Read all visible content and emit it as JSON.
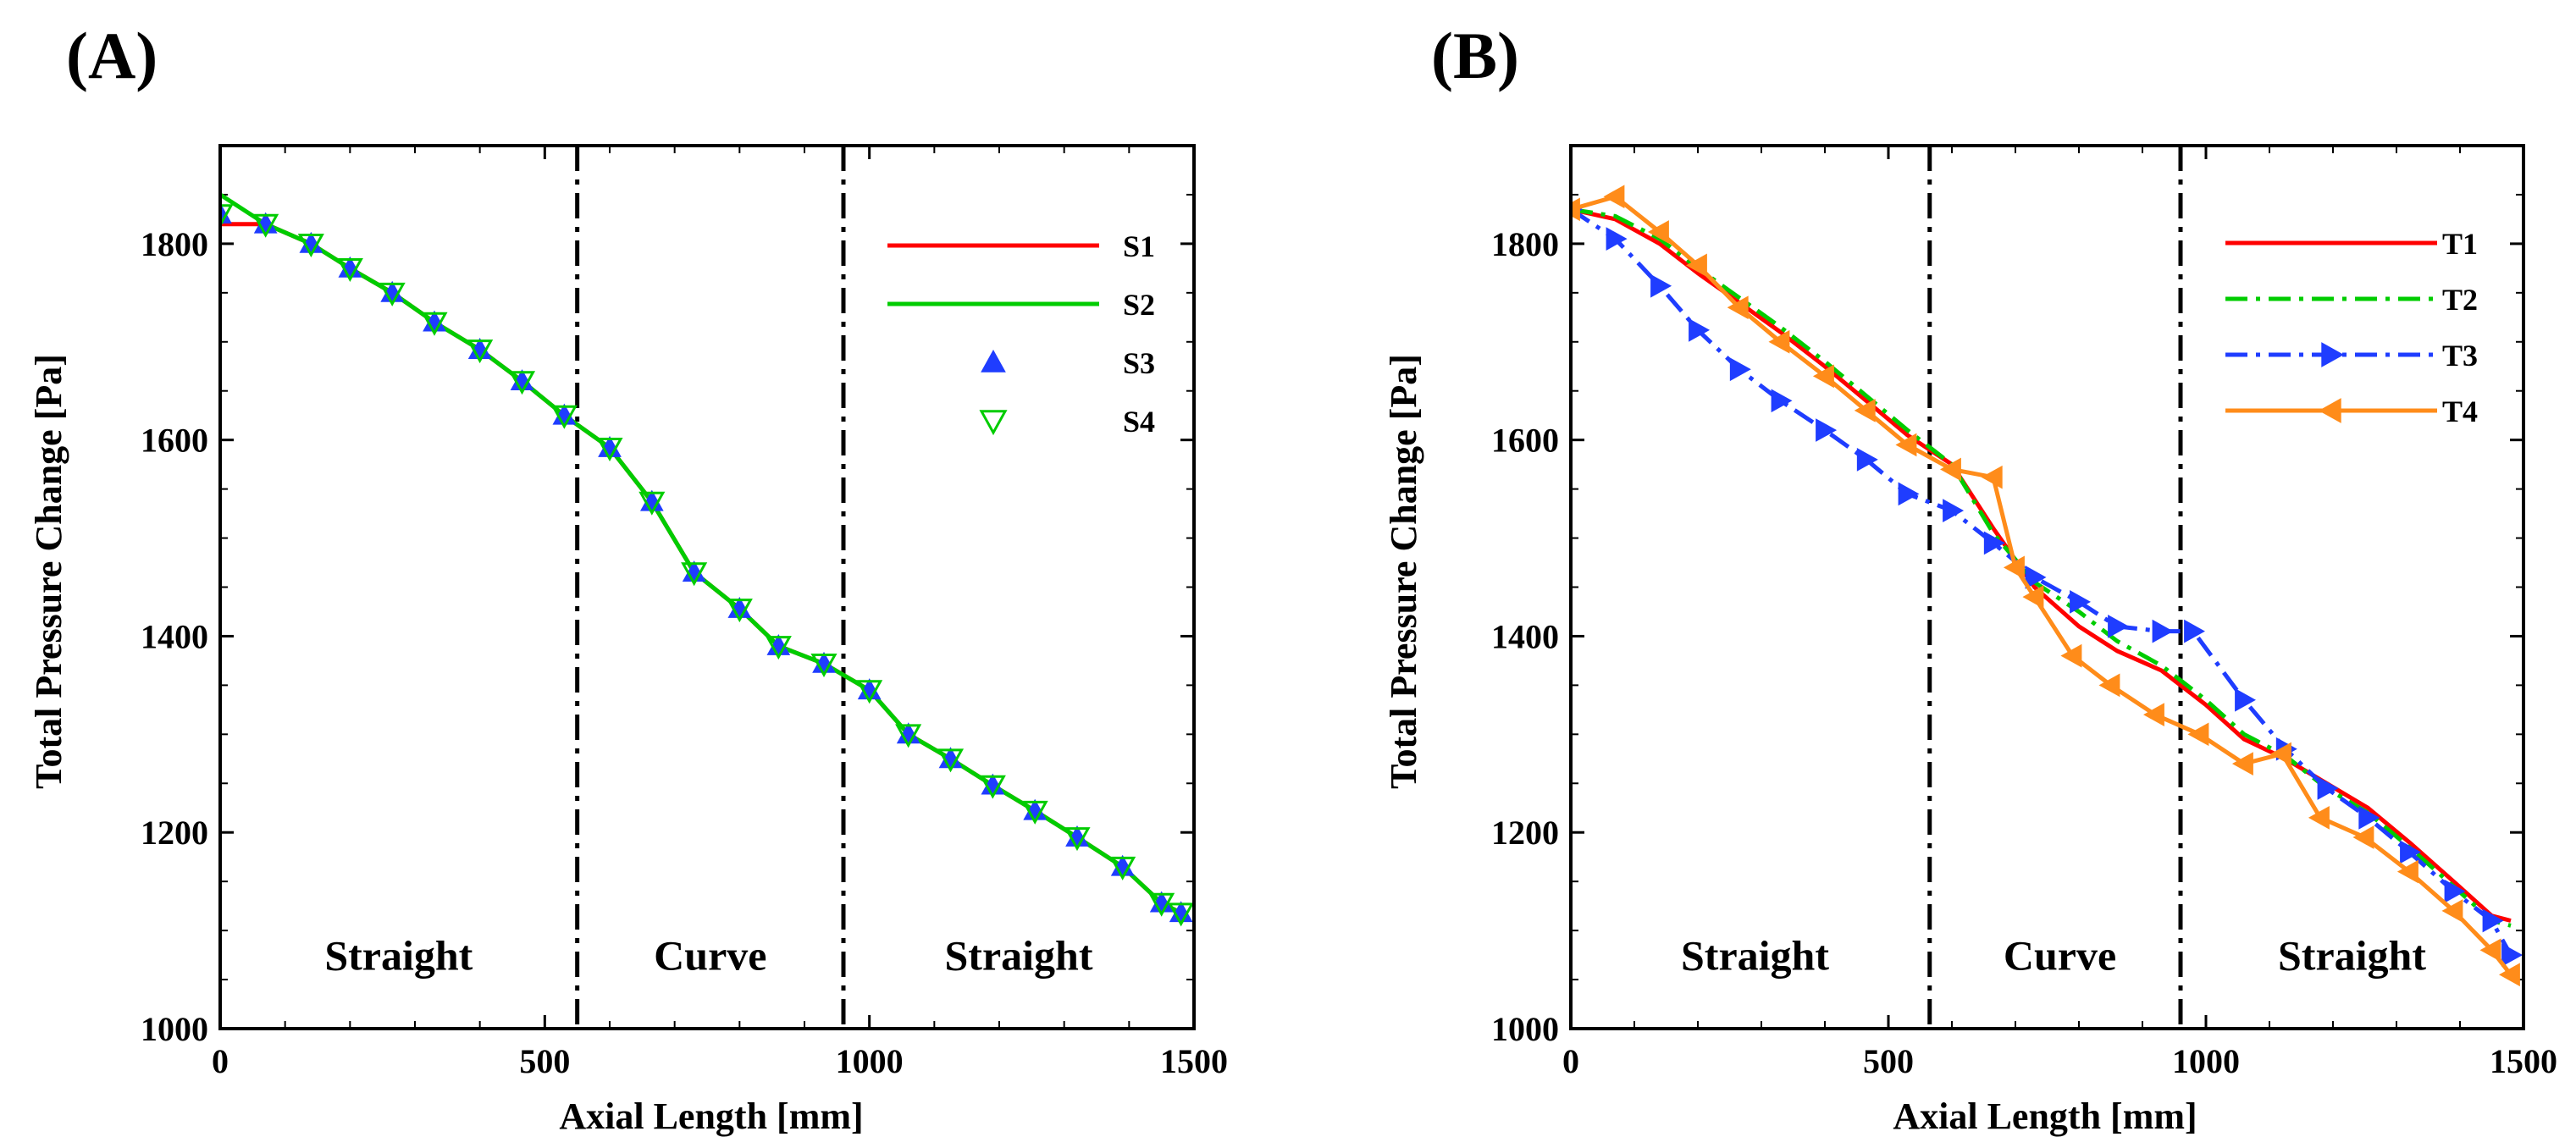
{
  "chart_data": [
    {
      "panel": "(A)",
      "type": "line",
      "xlabel": "Axial Length [mm]",
      "ylabel": "Total Pressure Change [Pa]",
      "xlim": [
        0,
        1500
      ],
      "ylim": [
        1000,
        1900
      ],
      "xticks": [
        0,
        500,
        1000,
        1500
      ],
      "yticks": [
        1000,
        1200,
        1400,
        1600,
        1800
      ],
      "legend": "top-right",
      "grid": false,
      "vlines": [
        550,
        960
      ],
      "regions": [
        {
          "label": "Straight",
          "x": 275,
          "y": 1060
        },
        {
          "label": "Curve",
          "x": 755,
          "y": 1060
        },
        {
          "label": "Straight",
          "x": 1230,
          "y": 1060
        }
      ],
      "series": [
        {
          "name": "S1",
          "color": "#ff0000",
          "style": "solid",
          "marker": "none",
          "x": [
            0,
            70,
            140,
            200,
            265,
            330,
            400,
            465,
            530,
            600,
            665,
            730,
            800,
            860,
            930,
            1000,
            1060,
            1125,
            1190,
            1255,
            1320,
            1390,
            1450,
            1480
          ],
          "y": [
            1820,
            1820,
            1800,
            1775,
            1750,
            1720,
            1692,
            1660,
            1625,
            1592,
            1537,
            1465,
            1428,
            1390,
            1372,
            1345,
            1300,
            1275,
            1248,
            1222,
            1195,
            1165,
            1128,
            1118
          ]
        },
        {
          "name": "S2",
          "color": "#00cc00",
          "style": "solid",
          "marker": "none",
          "x": [
            0,
            70,
            140,
            200,
            265,
            330,
            400,
            465,
            530,
            600,
            665,
            730,
            800,
            860,
            930,
            1000,
            1060,
            1125,
            1190,
            1255,
            1320,
            1390,
            1450,
            1480
          ],
          "y": [
            1850,
            1820,
            1800,
            1775,
            1750,
            1720,
            1692,
            1660,
            1625,
            1592,
            1537,
            1465,
            1428,
            1390,
            1372,
            1345,
            1300,
            1275,
            1248,
            1222,
            1195,
            1165,
            1128,
            1118
          ]
        },
        {
          "name": "S3",
          "color": "#1f3dff",
          "style": "none",
          "marker": "triangle-up",
          "x": [
            0,
            70,
            140,
            200,
            265,
            330,
            400,
            465,
            530,
            600,
            665,
            730,
            800,
            860,
            930,
            1000,
            1060,
            1125,
            1190,
            1255,
            1320,
            1390,
            1450,
            1480
          ],
          "y": [
            1830,
            1820,
            1800,
            1775,
            1750,
            1720,
            1692,
            1660,
            1625,
            1592,
            1537,
            1465,
            1428,
            1390,
            1372,
            1345,
            1300,
            1275,
            1248,
            1222,
            1195,
            1165,
            1128,
            1118
          ]
        },
        {
          "name": "S4",
          "color": "#00cc00",
          "style": "none",
          "marker": "triangle-down-open",
          "x": [
            0,
            70,
            140,
            200,
            265,
            330,
            400,
            465,
            530,
            600,
            665,
            730,
            800,
            860,
            930,
            1000,
            1060,
            1125,
            1190,
            1255,
            1320,
            1390,
            1450,
            1480
          ],
          "y": [
            1830,
            1820,
            1800,
            1775,
            1750,
            1720,
            1692,
            1660,
            1625,
            1592,
            1537,
            1465,
            1428,
            1390,
            1372,
            1345,
            1300,
            1275,
            1248,
            1222,
            1195,
            1165,
            1128,
            1118
          ]
        }
      ]
    },
    {
      "panel": "(B)",
      "type": "line",
      "xlabel": "Axial Length [mm]",
      "ylabel": "Total Pressure Change [Pa]",
      "xlim": [
        0,
        1500
      ],
      "ylim": [
        1000,
        1900
      ],
      "xticks": [
        0,
        500,
        1000,
        1500
      ],
      "yticks": [
        1000,
        1200,
        1400,
        1600,
        1800
      ],
      "legend": "top-right",
      "grid": false,
      "vlines": [
        565,
        960
      ],
      "regions": [
        {
          "label": "Straight",
          "x": 290,
          "y": 1060
        },
        {
          "label": "Curve",
          "x": 770,
          "y": 1060
        },
        {
          "label": "Straight",
          "x": 1230,
          "y": 1060
        }
      ],
      "series": [
        {
          "name": "T1",
          "color": "#ff0000",
          "style": "solid",
          "marker": "none",
          "x": [
            0,
            70,
            140,
            200,
            265,
            330,
            400,
            465,
            530,
            600,
            665,
            730,
            800,
            860,
            930,
            1000,
            1060,
            1125,
            1190,
            1255,
            1320,
            1390,
            1450,
            1480
          ],
          "y": [
            1835,
            1825,
            1800,
            1770,
            1740,
            1710,
            1675,
            1640,
            1605,
            1575,
            1510,
            1450,
            1410,
            1385,
            1365,
            1330,
            1295,
            1275,
            1250,
            1225,
            1190,
            1150,
            1115,
            1110
          ]
        },
        {
          "name": "T2",
          "color": "#00cc00",
          "style": "dashdot",
          "marker": "none",
          "x": [
            0,
            70,
            140,
            200,
            265,
            330,
            400,
            465,
            530,
            600,
            665,
            730,
            800,
            860,
            930,
            1000,
            1060,
            1125,
            1190,
            1255,
            1320,
            1390,
            1450,
            1480
          ],
          "y": [
            1835,
            1828,
            1805,
            1775,
            1745,
            1715,
            1680,
            1645,
            1610,
            1575,
            1505,
            1455,
            1425,
            1395,
            1370,
            1335,
            1300,
            1278,
            1245,
            1220,
            1185,
            1145,
            1110,
            1105
          ]
        },
        {
          "name": "T3",
          "color": "#1f3dff",
          "style": "dashdot",
          "marker": "triangle-right",
          "x": [
            0,
            70,
            140,
            200,
            265,
            330,
            400,
            465,
            530,
            600,
            665,
            730,
            800,
            860,
            930,
            980,
            1060,
            1125,
            1190,
            1255,
            1320,
            1390,
            1450,
            1480
          ],
          "y": [
            1835,
            1805,
            1757,
            1712,
            1672,
            1640,
            1610,
            1580,
            1545,
            1528,
            1495,
            1460,
            1435,
            1410,
            1405,
            1405,
            1335,
            1285,
            1245,
            1215,
            1180,
            1140,
            1110,
            1075
          ]
        },
        {
          "name": "T4",
          "color": "#ff8c1a",
          "style": "solid",
          "marker": "triangle-left",
          "x": [
            0,
            70,
            140,
            200,
            265,
            330,
            400,
            465,
            530,
            600,
            665,
            700,
            730,
            790,
            850,
            920,
            990,
            1060,
            1120,
            1180,
            1250,
            1320,
            1390,
            1450,
            1480
          ],
          "y": [
            1835,
            1848,
            1812,
            1778,
            1735,
            1700,
            1665,
            1630,
            1595,
            1570,
            1562,
            1470,
            1440,
            1380,
            1350,
            1320,
            1300,
            1270,
            1280,
            1215,
            1195,
            1160,
            1120,
            1080,
            1055
          ]
        }
      ]
    }
  ]
}
